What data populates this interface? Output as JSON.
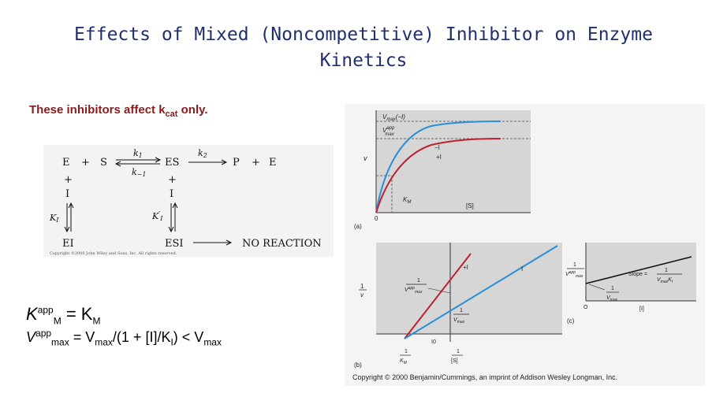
{
  "slide": {
    "title_line1": "Effects of Mixed (Noncompetitive) Inhibitor on Enzyme",
    "title_line2": "Kinetics",
    "subtitle_pre": "These inhibitors affect k",
    "subtitle_sub": "cat",
    "subtitle_post": " only."
  },
  "scheme": {
    "E": "E",
    "plus1": "+",
    "S": "S",
    "ES": "ES",
    "P": "P",
    "plus2": "+",
    "E2": "E",
    "k1": "k",
    "k1_sub": "1",
    "k_minus1": "k",
    "k_minus1_sub": "−1",
    "k2": "k",
    "k2_sub": "2",
    "plus_left": "+",
    "I_left": "I",
    "plus_right": "+",
    "I_right": "I",
    "KI": "K",
    "KI_sub": "I",
    "KI2": "K",
    "KI2_sup": "′",
    "KI2_sub": "I",
    "EI": "EI",
    "ESI": "ESI",
    "no_reaction": "NO REACTION",
    "copyright": "Copyright ©2000 John Wiley and Sons, Inc. All rights reserved."
  },
  "equations": {
    "eq1_K": "K",
    "eq1_sup": "app",
    "eq1_sub": "M",
    "eq1_rest": " = K",
    "eq1_sub2": "M",
    "eq2_V": "V",
    "eq2_sup": "app",
    "eq2_sub": "max",
    "eq2_mid": " = V",
    "eq2_sub2": "max",
    "eq2_tail": "/(1 + [I]/K",
    "eq2_sub3": "I",
    "eq2_end": ") < V",
    "eq2_sub4": "max"
  },
  "plots": {
    "panel_a": {
      "label": "(a)",
      "vmax_label": "V",
      "vmax_sub": "max",
      "vmax_tail": "(−I)",
      "vmaxapp_label": "V",
      "vmaxapp_sup": "app",
      "vmaxapp_sub": "max",
      "y_axis_label": "v",
      "x_axis_label": "[S]",
      "minus_I": "−I",
      "plus_I": "+I",
      "km_label": "K",
      "km_sub": "M",
      "origin": "0"
    },
    "panel_b": {
      "label": "(b)",
      "y_axis_num": "1",
      "y_axis_den": "v",
      "plus_I": "+I",
      "minus_I": "I",
      "int_app_num": "1",
      "int_app_den": "V",
      "int_app_sup": "app",
      "int_app_sub": "max",
      "int_num": "1",
      "int_den": "V",
      "int_sub": "max",
      "x_zero": "I0",
      "x_int_num": "1",
      "x_int_den": "K",
      "x_int_sub": "M",
      "x_axis_num": "1",
      "x_axis_den": "[S]"
    },
    "panel_c": {
      "label": "(c)",
      "y_num": "1",
      "y_den": "V",
      "y_sup": "app",
      "y_sub": "max",
      "slope_label": "Slope = ",
      "slope_num": "1",
      "slope_den": "V",
      "slope_sub": "max",
      "slope_k": "K",
      "slope_ksub": "I",
      "int_num": "1",
      "int_den": "V",
      "int_sub": "max",
      "origin": "O",
      "x_label": "[I]"
    },
    "copyright": "Copyright © 2000 Benjamin/Cummings, an imprint of Addison Wesley Longman, Inc."
  },
  "colors": {
    "title": "#1f2f6f",
    "subtitle": "#8b1a1a",
    "uninhibited_curve": "#2a8fd6",
    "inhibited_curve": "#c0202e"
  }
}
